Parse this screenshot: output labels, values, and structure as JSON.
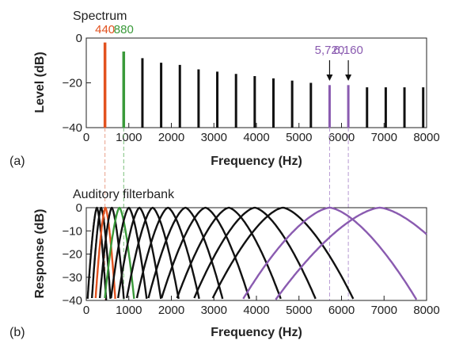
{
  "colors": {
    "red": "#e2521f",
    "green": "#3a9a3a",
    "purple": "#8a5bb0",
    "black": "#111111",
    "dash": "#e9a08a",
    "dash_green": "#7cc07c",
    "dash_purple": "#b69ad3"
  },
  "chart_data": [
    {
      "type": "bar",
      "title": "Spectrum",
      "panel_label": "(a)",
      "xlabel": "Frequency (Hz)",
      "ylabel": "Level (dB)",
      "xlim": [
        0,
        8000
      ],
      "ylim": [
        -40,
        0
      ],
      "xticks": [
        0,
        1000,
        2000,
        3000,
        4000,
        5000,
        6000,
        7000,
        8000
      ],
      "xtick_labels": [
        "0",
        "1000",
        "2000",
        "3000",
        "4000",
        "5000",
        "6000",
        "7000",
        "8000"
      ],
      "yticks": [
        0,
        -20,
        -40
      ],
      "ytick_labels": [
        "0",
        "−20",
        "−40"
      ],
      "harmonics_hz": [
        440,
        880,
        1320,
        1760,
        2200,
        2640,
        3080,
        3520,
        3960,
        4400,
        4840,
        5280,
        5720,
        6160,
        6600,
        7040,
        7480,
        7920
      ],
      "levels_db": [
        -2,
        -6,
        -9,
        -11,
        -12,
        -14,
        -15,
        -16,
        -17,
        -18,
        -19,
        -20,
        -21,
        -21,
        -22,
        -22,
        -22,
        -22
      ],
      "highlight": {
        "440": "red",
        "880": "green",
        "5720": "purple",
        "6160": "purple"
      },
      "annotations": [
        {
          "text": "440",
          "x": 440,
          "color": "red"
        },
        {
          "text": "880",
          "x": 880,
          "color": "green"
        },
        {
          "text": "5,720",
          "x": 5720,
          "color": "purple",
          "arrow": true
        },
        {
          "text": "6,160",
          "x": 6160,
          "color": "purple",
          "arrow": true
        }
      ]
    },
    {
      "type": "line",
      "title": "Auditory filterbank",
      "panel_label": "(b)",
      "xlabel": "Frequency (Hz)",
      "ylabel": "Response (dB)",
      "xlim": [
        0,
        8000
      ],
      "ylim": [
        -40,
        0
      ],
      "xticks": [
        0,
        1000,
        2000,
        3000,
        4000,
        5000,
        6000,
        7000,
        8000
      ],
      "xtick_labels": [
        "0",
        "1000",
        "2000",
        "3000",
        "4000",
        "5000",
        "6000",
        "7000",
        "8000"
      ],
      "yticks": [
        0,
        -10,
        -20,
        -30,
        -40
      ],
      "ytick_labels": [
        "0",
        "−10",
        "−20",
        "−30",
        "−40"
      ],
      "filter_center_hz": [
        250,
        350,
        450,
        600,
        780,
        1000,
        1250,
        1560,
        1920,
        2330,
        2800,
        3350,
        3960,
        4620,
        5720,
        6900
      ],
      "filter_color": [
        "black",
        "black",
        "red",
        "black",
        "green",
        "black",
        "black",
        "black",
        "black",
        "black",
        "black",
        "black",
        "black",
        "black",
        "purple",
        "purple"
      ],
      "filter_shape": "peak 0 dB, −40 dB at about ±ERB width; rounded-exponential",
      "guides": [
        {
          "x": 440,
          "color": "red"
        },
        {
          "x": 880,
          "color": "green"
        },
        {
          "x": 5720,
          "color": "purple"
        },
        {
          "x": 6160,
          "color": "purple"
        }
      ]
    }
  ]
}
